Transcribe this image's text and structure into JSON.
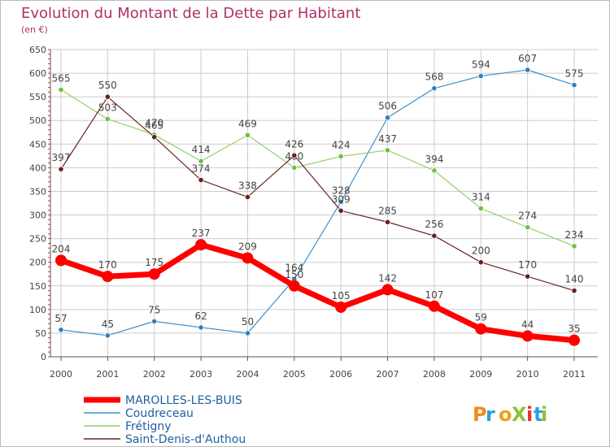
{
  "chart_data": {
    "type": "line",
    "title": "Evolution du Montant de la Dette par Habitant",
    "subtitle": "(en €)",
    "x": [
      "2000",
      "2001",
      "2002",
      "2003",
      "2004",
      "2005",
      "2006",
      "2007",
      "2008",
      "2009",
      "2010",
      "2011"
    ],
    "yticks": [
      0,
      50,
      100,
      150,
      200,
      250,
      300,
      350,
      400,
      450,
      500,
      550,
      600,
      650
    ],
    "ylim": [
      0,
      650
    ],
    "grid": true,
    "legend_position": "bottom-left",
    "series": [
      {
        "name": "MAROLLES-LES-BUIS",
        "color": "#ff0000",
        "emphasis": true,
        "values": [
          204,
          170,
          175,
          237,
          209,
          150,
          105,
          142,
          107,
          59,
          44,
          35
        ]
      },
      {
        "name": "Coudreceau",
        "color": "#3a8fc9",
        "point_color": "#2f7fbf",
        "emphasis": false,
        "values": [
          57,
          45,
          75,
          62,
          50,
          164,
          328,
          506,
          568,
          594,
          607,
          575
        ]
      },
      {
        "name": "Frétigny",
        "color": "#8fd16a",
        "point_color": "#6cc23c",
        "emphasis": false,
        "values": [
          565,
          503,
          470,
          414,
          469,
          400,
          424,
          437,
          394,
          314,
          274,
          234
        ]
      },
      {
        "name": "Saint-Denis-d'Authou",
        "color": "#6b2323",
        "point_color": "#6b1d1d",
        "emphasis": false,
        "values": [
          397,
          550,
          465,
          374,
          338,
          426,
          309,
          285,
          256,
          200,
          170,
          140
        ]
      }
    ]
  },
  "branding": {
    "logo_text": "ProXiti"
  },
  "colors": {
    "title": "#b0306a",
    "label": "#2060a0",
    "axis": "#555555",
    "grid": "#cccccc"
  }
}
